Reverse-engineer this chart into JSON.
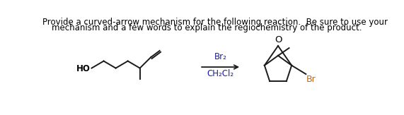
{
  "title_line1": "Provide a curved-arrow mechanism for the following reaction.  Be sure to use your",
  "title_line2": "mechanism and a few words to explain the regiochemistry of the product.",
  "reagent_top": "Br₂",
  "reagent_bottom": "CH₂Cl₂",
  "label_HO": "HO",
  "label_Br": "Br",
  "label_O": "O",
  "bg_color": "#ffffff",
  "text_color": "#000000",
  "reagent_color": "#1a1aaa",
  "br_color": "#cc6600",
  "line_color": "#1a1a1a",
  "font_size_title": 8.5,
  "font_size_label": 8.5,
  "fig_width": 5.71,
  "fig_height": 1.63,
  "dpi": 100
}
